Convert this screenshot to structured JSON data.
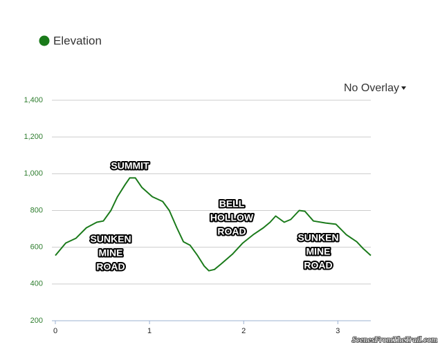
{
  "chart_data": {
    "type": "line",
    "overlay_menu": "No Overlay",
    "x": [
      0,
      0.11,
      0.22,
      0.33,
      0.44,
      0.51,
      0.59,
      0.66,
      0.74,
      0.79,
      0.85,
      0.92,
      1.03,
      1.14,
      1.21,
      1.29,
      1.36,
      1.43,
      1.51,
      1.58,
      1.63,
      1.69,
      1.76,
      1.88,
      1.99,
      2.1,
      2.21,
      2.28,
      2.34,
      2.43,
      2.5,
      2.59,
      2.65,
      2.74,
      2.87,
      2.98,
      3.09,
      3.2,
      3.27,
      3.35
    ],
    "series": [
      {
        "name": "Elevation",
        "color": "#1a7a1a",
        "values": [
          555,
          623,
          649,
          706,
          736,
          743,
          800,
          875,
          940,
          977,
          977,
          925,
          875,
          849,
          800,
          706,
          630,
          611,
          555,
          498,
          472,
          479,
          509,
          562,
          623,
          668,
          706,
          736,
          770,
          736,
          751,
          800,
          796,
          743,
          732,
          725,
          668,
          630,
          592,
          555
        ]
      }
    ],
    "xlim": [
      0,
      3.35
    ],
    "xticks": [
      0,
      1,
      2,
      3
    ],
    "ylim": [
      200,
      1400
    ],
    "yticks": [
      200,
      400,
      600,
      800,
      {
        "value": 1000,
        "label": "1,000"
      },
      {
        "value": 1200,
        "label": "1,200"
      },
      {
        "value": 1400,
        "label": "1,400"
      }
    ],
    "grid": true,
    "annotations": [
      [
        "SUMMIT"
      ],
      [
        "SUNKEN",
        "MINE",
        "ROAD"
      ],
      [
        "BELL",
        "HOLLOW",
        "ROAD"
      ],
      [
        "SUNKEN",
        "MINE",
        "ROAD"
      ]
    ],
    "watermark": "ScenesFromTheTrail.com"
  }
}
